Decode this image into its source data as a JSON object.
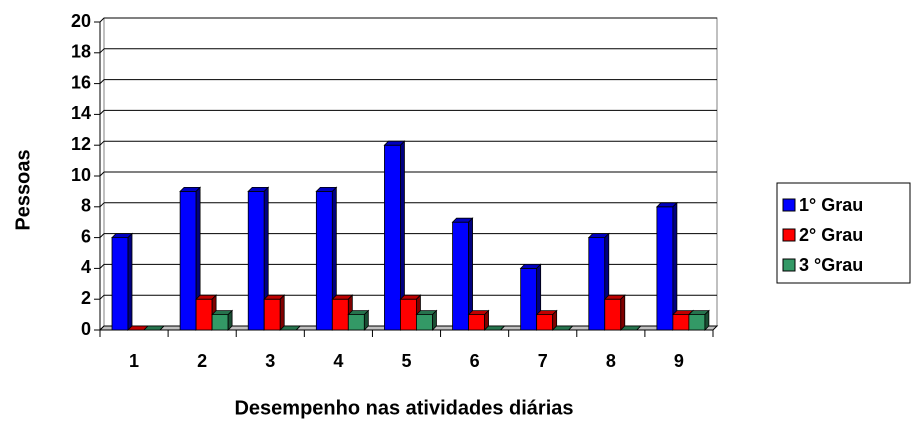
{
  "chart_data": {
    "type": "bar",
    "x_label": "Desempenho nas atividades diárias",
    "y_label": "Pessoas",
    "categories": [
      "1",
      "2",
      "3",
      "4",
      "5",
      "6",
      "7",
      "8",
      "9"
    ],
    "series": [
      {
        "name": "1° Grau",
        "color": "#0000ff",
        "values": [
          6,
          9,
          9,
          9,
          12,
          7,
          4,
          6,
          8
        ]
      },
      {
        "name": "2° Grau",
        "color": "#ff0000",
        "values": [
          0,
          2,
          2,
          2,
          2,
          1,
          1,
          2,
          1
        ]
      },
      {
        "name": "3 °Grau",
        "color": "#339966",
        "values": [
          0,
          1,
          0,
          1,
          1,
          0,
          0,
          0,
          1
        ]
      }
    ],
    "ylim": [
      0,
      20
    ],
    "yticks": [
      0,
      2,
      4,
      6,
      8,
      10,
      12,
      14,
      16,
      18,
      20
    ],
    "grid": true,
    "legend": "right"
  }
}
